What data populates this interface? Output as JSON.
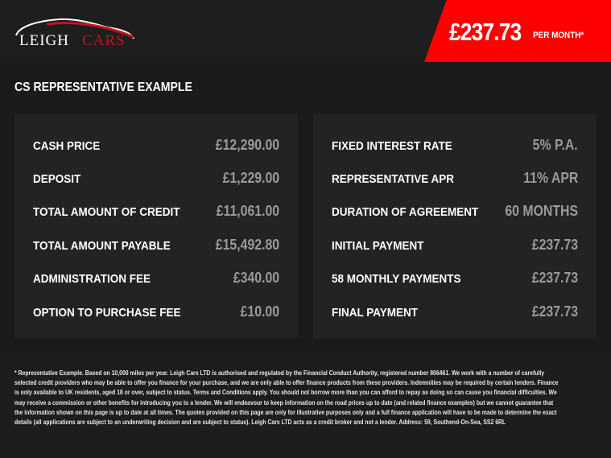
{
  "header": {
    "logo_text_1": "LEIGH",
    "logo_text_2": "CARS",
    "monthly_price": "£237.73",
    "per_month": "PER MONTH*",
    "brand_red": "#ff0000"
  },
  "section_title": "CS REPRESENTATIVE EXAMPLE",
  "left": [
    {
      "label": "CASH PRICE",
      "value": "£12,290.00"
    },
    {
      "label": "DEPOSIT",
      "value": "£1,229.00"
    },
    {
      "label": "TOTAL AMOUNT OF CREDIT",
      "value": "£11,061.00"
    },
    {
      "label": "TOTAL AMOUNT PAYABLE",
      "value": "£15,492.80"
    },
    {
      "label": "ADMINISTRATION FEE",
      "value": "£340.00"
    },
    {
      "label": "OPTION TO PURCHASE FEE",
      "value": "£10.00"
    }
  ],
  "right": [
    {
      "label": "FIXED INTEREST RATE",
      "value": "5% P.A."
    },
    {
      "label": "REPRESENTATIVE APR",
      "value": "11% APR"
    },
    {
      "label": "DURATION OF AGREEMENT",
      "value": "60 MONTHS"
    },
    {
      "label": "INITIAL PAYMENT",
      "value": "£237.73"
    },
    {
      "label": "58 MONTHLY PAYMENTS",
      "value": "£237.73"
    },
    {
      "label": "FINAL PAYMENT",
      "value": "£237.73"
    }
  ],
  "disclaimer": "* Representative Example. Based on 10,000 miles per year. Leigh Cars LTD is authorised and regulated by the Financial Conduct Authority, registered number 806461. We work with a number of carefully selected credit providers who may be able to offer you finance for your purchase, and we are only able to offer finance products from these providers. Indemnities may be required by certain lenders. Finance is only available to UK residents, aged 18 or over, subject to status. Terms and Conditions apply. You should not borrow more than you can afford to repay as doing so can cause you financial difficulties. We may receive a commission or other benefits for introducing you to a lender. We will endeavour to keep information on the road prices up to date (and related finance examples) but we cannot guarantee that the information shown on this page is up to date at all times. The quotes provided on this page are only for illustrative purposes only and a full finance application will have to be made to determine the exact details (all applications are subject to an underwriting decision and are subject to status). Leigh Cars LTD acts as a credit broker and not a lender. Address:  59, Southend-On-Sea, SS2 6RL"
}
